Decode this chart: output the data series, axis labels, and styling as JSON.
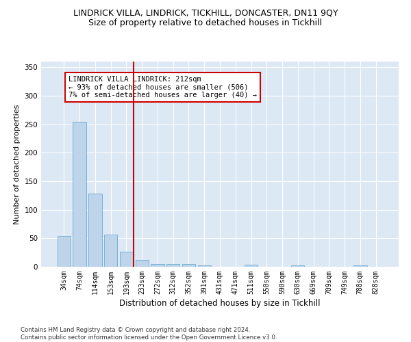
{
  "title": "LINDRICK VILLA, LINDRICK, TICKHILL, DONCASTER, DN11 9QY",
  "subtitle": "Size of property relative to detached houses in Tickhill",
  "xlabel": "Distribution of detached houses by size in Tickhill",
  "ylabel": "Number of detached properties",
  "bar_labels": [
    "34sqm",
    "74sqm",
    "114sqm",
    "153sqm",
    "193sqm",
    "233sqm",
    "272sqm",
    "312sqm",
    "352sqm",
    "391sqm",
    "431sqm",
    "471sqm",
    "511sqm",
    "550sqm",
    "590sqm",
    "630sqm",
    "669sqm",
    "709sqm",
    "749sqm",
    "788sqm",
    "828sqm"
  ],
  "bar_heights": [
    54,
    255,
    128,
    57,
    26,
    12,
    5,
    5,
    5,
    2,
    0,
    0,
    4,
    0,
    0,
    2,
    0,
    0,
    0,
    2,
    0
  ],
  "bar_color": "#bdd4eb",
  "bar_edgecolor": "#6aaad4",
  "bar_width": 0.85,
  "vline_x": 4.47,
  "vline_color": "#cc0000",
  "annotation_text": "LINDRICK VILLA LINDRICK: 212sqm\n← 93% of detached houses are smaller (506)\n7% of semi-detached houses are larger (40) →",
  "annotation_box_color": "white",
  "annotation_box_edgecolor": "#cc0000",
  "ylim": [
    0,
    360
  ],
  "yticks": [
    0,
    50,
    100,
    150,
    200,
    250,
    300,
    350
  ],
  "footnote": "Contains HM Land Registry data © Crown copyright and database right 2024.\nContains public sector information licensed under the Open Government Licence v3.0.",
  "background_color": "#dde8f5",
  "title_fontsize": 9,
  "subtitle_fontsize": 9,
  "tick_fontsize": 7
}
